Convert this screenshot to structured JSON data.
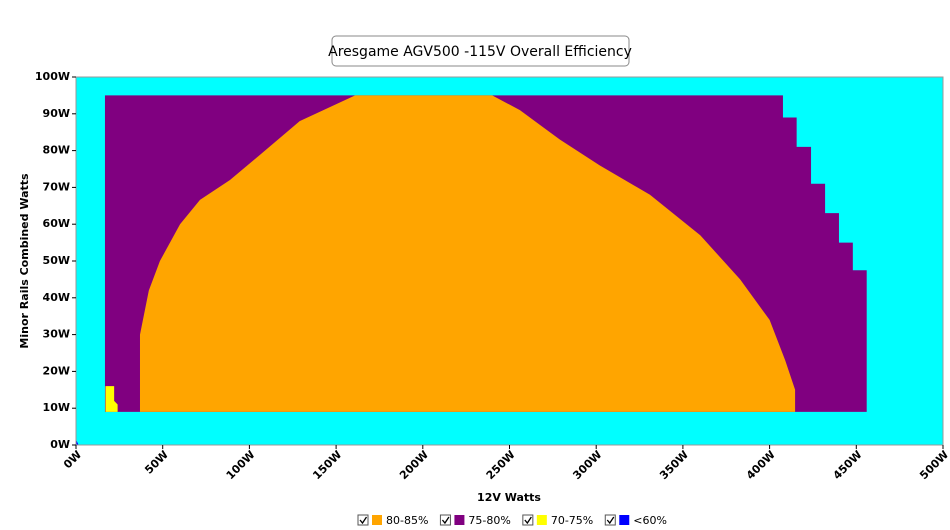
{
  "chart_data": {
    "type": "region",
    "title": "Aresgame AGV500 -115V Overall Efficiency",
    "xlabel": "12V Watts",
    "ylabel": "Minor Rails Combined Watts",
    "background": "#00ffff",
    "xlim": [
      0,
      500
    ],
    "ylim": [
      0,
      100
    ],
    "xticks": [
      {
        "value": 0,
        "label": "0W"
      },
      {
        "value": 50,
        "label": "50W"
      },
      {
        "value": 100,
        "label": "100W"
      },
      {
        "value": 150,
        "label": "150W"
      },
      {
        "value": 200,
        "label": "200W"
      },
      {
        "value": 250,
        "label": "250W"
      },
      {
        "value": 300,
        "label": "300W"
      },
      {
        "value": 350,
        "label": "350W"
      },
      {
        "value": 400,
        "label": "400W"
      },
      {
        "value": 450,
        "label": "450W"
      },
      {
        "value": 500,
        "label": "500W"
      }
    ],
    "yticks": [
      {
        "value": 0,
        "label": "0W"
      },
      {
        "value": 10,
        "label": "10W"
      },
      {
        "value": 20,
        "label": "20W"
      },
      {
        "value": 30,
        "label": "30W"
      },
      {
        "value": 40,
        "label": "40W"
      },
      {
        "value": 50,
        "label": "50W"
      },
      {
        "value": 60,
        "label": "60W"
      },
      {
        "value": 70,
        "label": "70W"
      },
      {
        "value": 80,
        "label": "80W"
      },
      {
        "value": 90,
        "label": "90W"
      },
      {
        "value": 100,
        "label": "100W"
      }
    ],
    "series": [
      {
        "name": "80-85%",
        "color": "#ffa500",
        "x": [
          41,
          36.9,
          36.9,
          42,
          48.4,
          60,
          71.5,
          88.8,
          106,
          129,
          161,
          240,
          256,
          279,
          302,
          331,
          360,
          383,
          400,
          409,
          414.7,
          414.7
        ],
        "y": [
          9,
          9,
          30,
          42,
          50,
          60,
          66.6,
          72,
          78.8,
          88,
          95,
          95,
          91,
          83,
          76,
          68,
          57,
          45,
          34,
          23,
          15,
          9
        ]
      },
      {
        "name": "75-80%",
        "color": "#800080",
        "x": [
          16.7,
          407.7,
          407.7,
          415.6,
          415.6,
          423.9,
          423.9,
          432,
          432,
          440,
          440,
          448,
          448,
          456,
          456,
          16.7
        ],
        "y": [
          95,
          95,
          89,
          89,
          81,
          81,
          71,
          71,
          63,
          63,
          55,
          55,
          47.5,
          47.5,
          9,
          9
        ]
      },
      {
        "name": "70-75%",
        "color": "#ffff00",
        "x": [
          17,
          22,
          22,
          24,
          24,
          17
        ],
        "y": [
          16,
          16,
          12,
          11,
          9,
          9
        ]
      },
      {
        "name": "<60%",
        "color": "#0000ff",
        "x": [
          0,
          1.5,
          0
        ],
        "y": [
          0,
          0,
          1.5
        ]
      }
    ]
  }
}
